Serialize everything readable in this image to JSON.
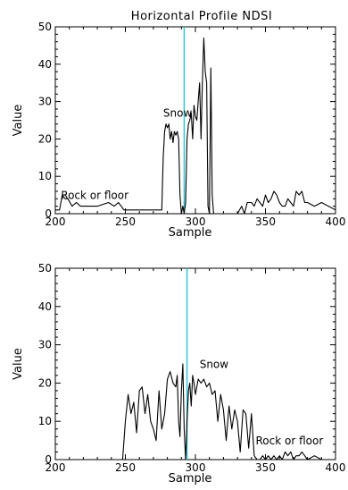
{
  "chart_data": [
    {
      "type": "line",
      "title": "Horizontal Profile NDSI",
      "xlabel": "Sample",
      "ylabel": "Value",
      "xlim": [
        200,
        400
      ],
      "ylim": [
        0,
        50
      ],
      "xticks": [
        200,
        250,
        300,
        350,
        400
      ],
      "yticks": [
        0,
        10,
        20,
        30,
        40,
        50
      ],
      "marker_line": {
        "x": 292,
        "color": "#36c3d9"
      },
      "annotations": [
        {
          "text": "Snow",
          "x": 277,
          "y": 26
        },
        {
          "text": "Rock or floor",
          "x": 204,
          "y": 4
        }
      ],
      "series": [
        {
          "x": [
            200,
            203,
            205,
            207,
            209,
            212,
            215,
            218,
            222,
            230,
            238,
            242,
            245,
            247,
            249,
            252,
            260,
            270,
            276,
            277,
            278,
            279,
            280,
            281,
            282,
            283,
            284,
            285,
            286,
            287,
            288,
            289,
            290,
            291,
            292,
            293,
            294,
            295,
            296,
            297,
            298,
            299,
            300,
            301,
            302,
            303,
            304,
            305,
            306,
            307,
            308,
            309,
            310,
            311,
            312,
            313,
            320,
            330,
            333,
            335,
            337,
            340,
            342,
            344,
            346,
            348,
            350,
            352,
            354,
            356,
            358,
            360,
            362,
            364,
            366,
            368,
            370,
            372,
            374,
            376,
            378,
            380,
            385,
            390,
            400
          ],
          "values": [
            1,
            1,
            5,
            4,
            4,
            2,
            3,
            2,
            2,
            2,
            3,
            2,
            3,
            2,
            1,
            1,
            1,
            1,
            1,
            15,
            22,
            24,
            23,
            24,
            20,
            22,
            19,
            22,
            21,
            22,
            20,
            5,
            0,
            2,
            0,
            3,
            20,
            24,
            25,
            27,
            20,
            29,
            26,
            25,
            30,
            35,
            20,
            35,
            47,
            38,
            35,
            2,
            0,
            39,
            5,
            0,
            0,
            0,
            2,
            0,
            3,
            3,
            2,
            4,
            3,
            2,
            5,
            3,
            4,
            6,
            5,
            3,
            2,
            2,
            4,
            3,
            2,
            6,
            5,
            6,
            3,
            3,
            2,
            3,
            1
          ]
        }
      ]
    },
    {
      "type": "line",
      "title": "",
      "xlabel": "Sample",
      "ylabel": "Value",
      "xlim": [
        200,
        400
      ],
      "ylim": [
        0,
        50
      ],
      "xticks": [
        200,
        250,
        300,
        350,
        400
      ],
      "yticks": [
        0,
        10,
        20,
        30,
        40,
        50
      ],
      "marker_line": {
        "x": 294,
        "color": "#36c3d9"
      },
      "annotations": [
        {
          "text": "Snow",
          "x": 303,
          "y": 24
        },
        {
          "text": "Rock or floor",
          "x": 343,
          "y": 4
        }
      ],
      "series": [
        {
          "x": [
            200,
            220,
            240,
            248,
            250,
            252,
            254,
            256,
            258,
            260,
            262,
            264,
            266,
            268,
            270,
            272,
            274,
            276,
            278,
            280,
            282,
            284,
            286,
            287,
            288,
            289,
            290,
            291,
            292,
            293,
            294,
            295,
            296,
            297,
            298,
            299,
            300,
            302,
            304,
            306,
            308,
            310,
            312,
            314,
            316,
            318,
            320,
            322,
            324,
            326,
            328,
            330,
            332,
            334,
            336,
            338,
            340,
            342,
            344,
            346,
            348,
            350,
            352,
            354,
            356,
            358,
            360,
            362,
            364,
            366,
            368,
            370,
            372,
            374,
            376,
            378,
            380,
            385,
            390,
            400
          ],
          "values": [
            0,
            0,
            0,
            0,
            10,
            17,
            12,
            15,
            7,
            18,
            19,
            12,
            17,
            10,
            8,
            5,
            18,
            8,
            12,
            21,
            23,
            20,
            19,
            22,
            10,
            6,
            18,
            25,
            8,
            0,
            10,
            18,
            20,
            14,
            22,
            20,
            17,
            21,
            20,
            21,
            19,
            20,
            17,
            18,
            10,
            17,
            13,
            5,
            14,
            8,
            13,
            10,
            2,
            13,
            12,
            3,
            12,
            1,
            0,
            0,
            1,
            0,
            1,
            0,
            1,
            0,
            1,
            0,
            2,
            1,
            2,
            0,
            1,
            1,
            2,
            1,
            0,
            1,
            0,
            0
          ]
        }
      ]
    }
  ]
}
